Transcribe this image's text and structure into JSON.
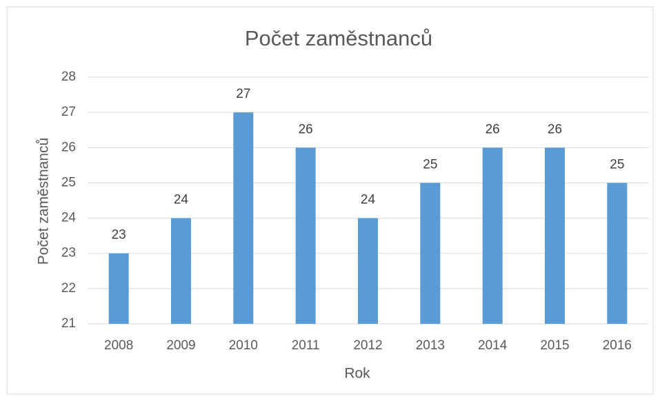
{
  "chart_data": {
    "type": "bar",
    "title": "Počet zaměstnanců",
    "x_label": "Rok",
    "y_label": "Počet zaměstnanců",
    "categories": [
      "2008",
      "2009",
      "2010",
      "2011",
      "2012",
      "2013",
      "2014",
      "2015",
      "2016"
    ],
    "values": [
      23,
      24,
      27,
      26,
      24,
      25,
      26,
      26,
      25
    ],
    "color": "#5b9bd5",
    "ylim": [
      21,
      28
    ],
    "yticks": [
      21,
      22,
      23,
      24,
      25,
      26,
      27,
      28
    ],
    "grid": true
  }
}
